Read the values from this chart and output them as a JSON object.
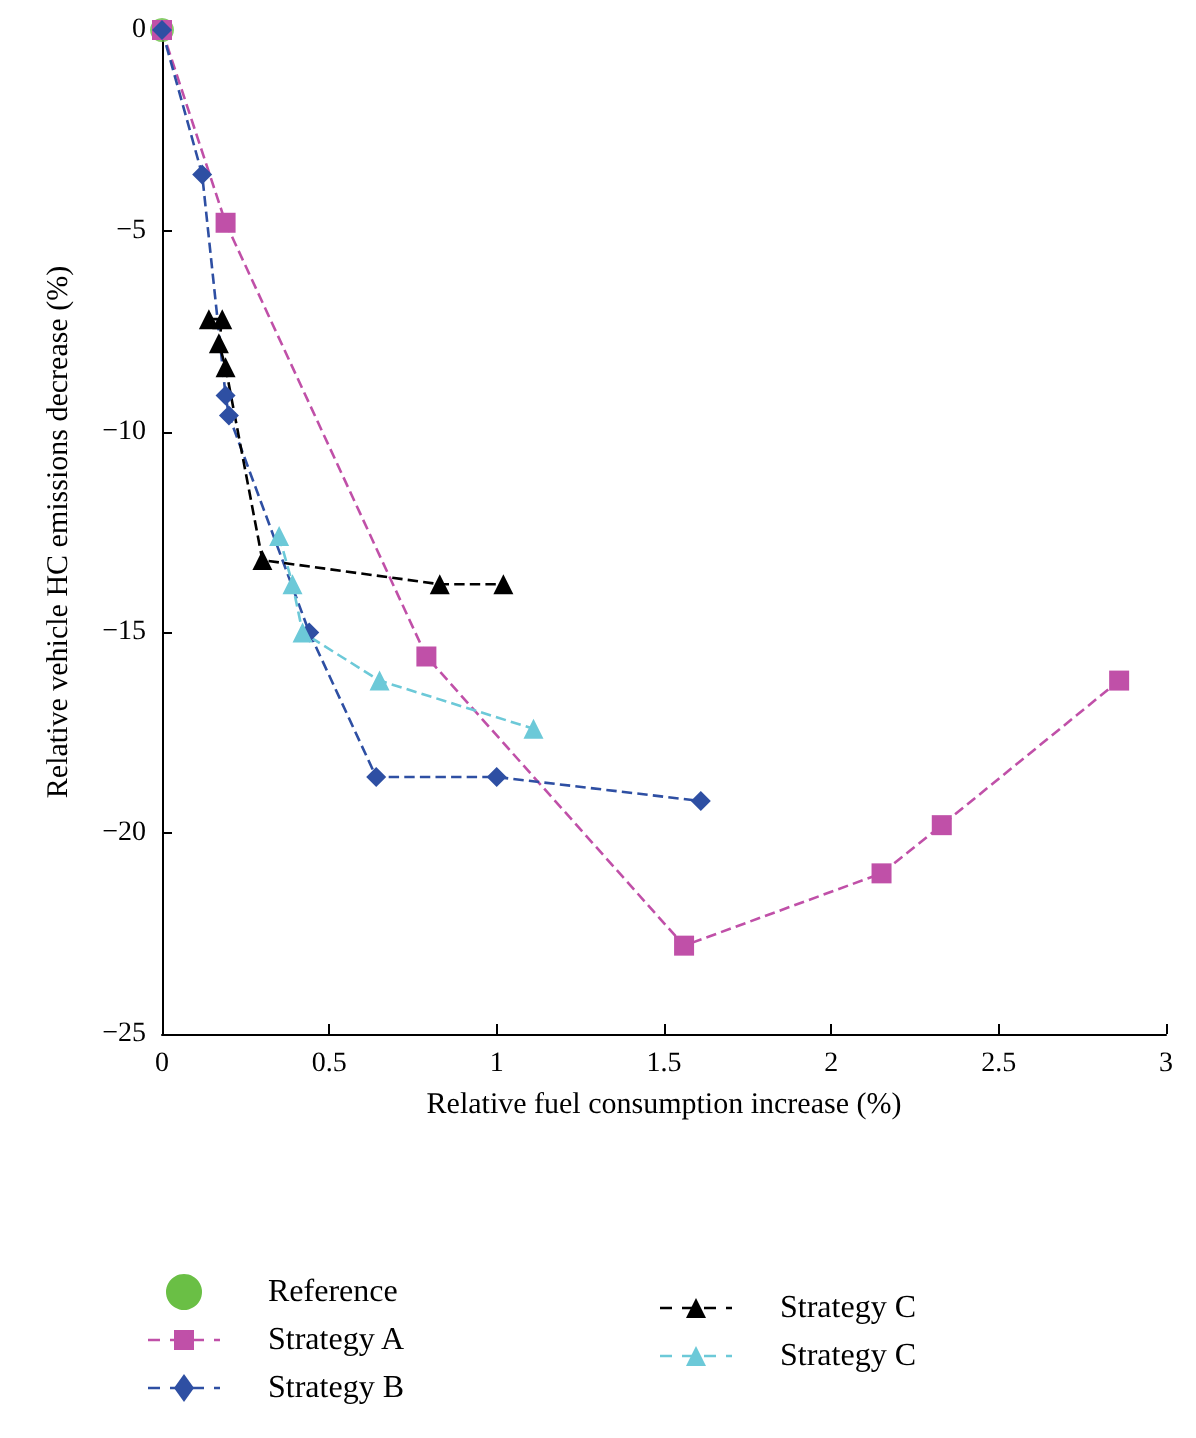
{
  "chart_data": {
    "type": "line",
    "xlabel": "Relative fuel consumption increase (%)",
    "ylabel": "Relative vehicle HC emissions decrease (%)",
    "xlim": [
      0,
      3
    ],
    "xticks": [
      0,
      0.5,
      1,
      1.5,
      2,
      2.5,
      3
    ],
    "ylim": [
      -25,
      0
    ],
    "yticks": [
      -25,
      -20,
      -15,
      -10,
      -5,
      0
    ],
    "grid": false,
    "legend": "bottom",
    "line_style": "dashed",
    "series": [
      {
        "name": "Reference",
        "type": "scatter",
        "marker": "circle",
        "color": "#6abf45",
        "x": [
          0
        ],
        "values": [
          0
        ]
      },
      {
        "name": "Strategy A",
        "marker": "square",
        "color": "#c050a8",
        "x": [
          0,
          0.19,
          0.79,
          1.56,
          2.15,
          2.33,
          2.86
        ],
        "values": [
          0,
          -4.8,
          -15.6,
          -22.8,
          -21.0,
          -19.8,
          -16.2
        ]
      },
      {
        "name": "Strategy B",
        "marker": "diamond",
        "color": "#2e4fa3",
        "x": [
          0,
          0.12,
          0.19,
          0.2,
          0.44,
          0.64,
          1.0,
          1.61
        ],
        "values": [
          0,
          -3.6,
          -9.1,
          -9.6,
          -15.0,
          -18.6,
          -18.6,
          -19.2
        ]
      },
      {
        "name": "Strategy C",
        "marker": "triangle",
        "color": "#000000",
        "x": [
          0.14,
          0.18,
          0.17,
          0.19,
          0.3,
          0.83,
          1.02
        ],
        "values": [
          -7.2,
          -7.2,
          -7.8,
          -8.4,
          -13.2,
          -13.8,
          -13.8
        ]
      },
      {
        "name": "Strategy C",
        "marker": "triangle",
        "color": "#6cc9d8",
        "x": [
          0.35,
          0.39,
          0.42,
          0.65,
          1.11
        ],
        "values": [
          -12.6,
          -13.8,
          -15.0,
          -16.2,
          -17.4
        ]
      }
    ]
  }
}
